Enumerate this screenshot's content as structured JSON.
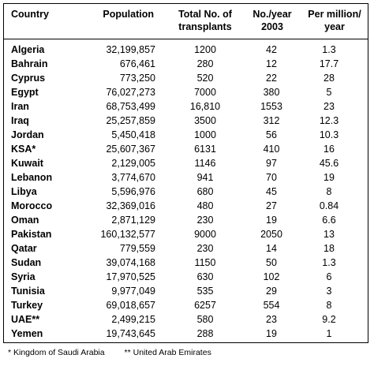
{
  "headers": {
    "country": "Country",
    "population": "Population",
    "transplants_line1": "Total No. of",
    "transplants_line2": "transplants",
    "peryear_line1": "No./year",
    "peryear_line2": "2003",
    "permillion_line1": "Per million/",
    "permillion_line2": "year"
  },
  "rows": [
    {
      "country": "Algeria",
      "population": "32,199,857",
      "transplants": "1200",
      "per_year": "42",
      "per_million": "1.3"
    },
    {
      "country": "Bahrain",
      "population": "676,461",
      "transplants": "280",
      "per_year": "12",
      "per_million": "17.7"
    },
    {
      "country": "Cyprus",
      "population": "773,250",
      "transplants": "520",
      "per_year": "22",
      "per_million": "28"
    },
    {
      "country": "Egypt",
      "population": "76,027,273",
      "transplants": "7000",
      "per_year": "380",
      "per_million": "5"
    },
    {
      "country": "Iran",
      "population": "68,753,499",
      "transplants": "16,810",
      "per_year": "1553",
      "per_million": "23"
    },
    {
      "country": "Iraq",
      "population": "25,257,859",
      "transplants": "3500",
      "per_year": "312",
      "per_million": "12.3"
    },
    {
      "country": "Jordan",
      "population": "5,450,418",
      "transplants": "1000",
      "per_year": "56",
      "per_million": "10.3"
    },
    {
      "country": "KSA*",
      "population": "25,607,367",
      "transplants": "6131",
      "per_year": "410",
      "per_million": "16"
    },
    {
      "country": "Kuwait",
      "population": "2,129,005",
      "transplants": "1146",
      "per_year": "97",
      "per_million": "45.6"
    },
    {
      "country": "Lebanon",
      "population": "3,774,670",
      "transplants": "941",
      "per_year": "70",
      "per_million": "19"
    },
    {
      "country": "Libya",
      "population": "5,596,976",
      "transplants": "680",
      "per_year": "45",
      "per_million": "8"
    },
    {
      "country": "Morocco",
      "population": "32,369,016",
      "transplants": "480",
      "per_year": "27",
      "per_million": "0.84"
    },
    {
      "country": "Oman",
      "population": "2,871,129",
      "transplants": "230",
      "per_year": "19",
      "per_million": "6.6"
    },
    {
      "country": "Pakistan",
      "population": "160,132,577",
      "transplants": "9000",
      "per_year": "2050",
      "per_million": "13"
    },
    {
      "country": "Qatar",
      "population": "779,559",
      "transplants": "230",
      "per_year": "14",
      "per_million": "18"
    },
    {
      "country": "Sudan",
      "population": "39,074,168",
      "transplants": "1150",
      "per_year": "50",
      "per_million": "1.3"
    },
    {
      "country": "Syria",
      "population": "17,970,525",
      "transplants": "630",
      "per_year": "102",
      "per_million": "6"
    },
    {
      "country": "Tunisia",
      "population": "9,977,049",
      "transplants": "535",
      "per_year": "29",
      "per_million": "3"
    },
    {
      "country": "Turkey",
      "population": "69,018,657",
      "transplants": "6257",
      "per_year": "554",
      "per_million": "8"
    },
    {
      "country": "UAE**",
      "population": "2,499,215",
      "transplants": "580",
      "per_year": "23",
      "per_million": "9.2"
    },
    {
      "country": "Yemen",
      "population": "19,743,645",
      "transplants": "288",
      "per_year": "19",
      "per_million": "1"
    }
  ],
  "footnotes": {
    "ksa": "* Kingdom of Saudi Arabia",
    "uae": "** United Arab Emirates"
  }
}
